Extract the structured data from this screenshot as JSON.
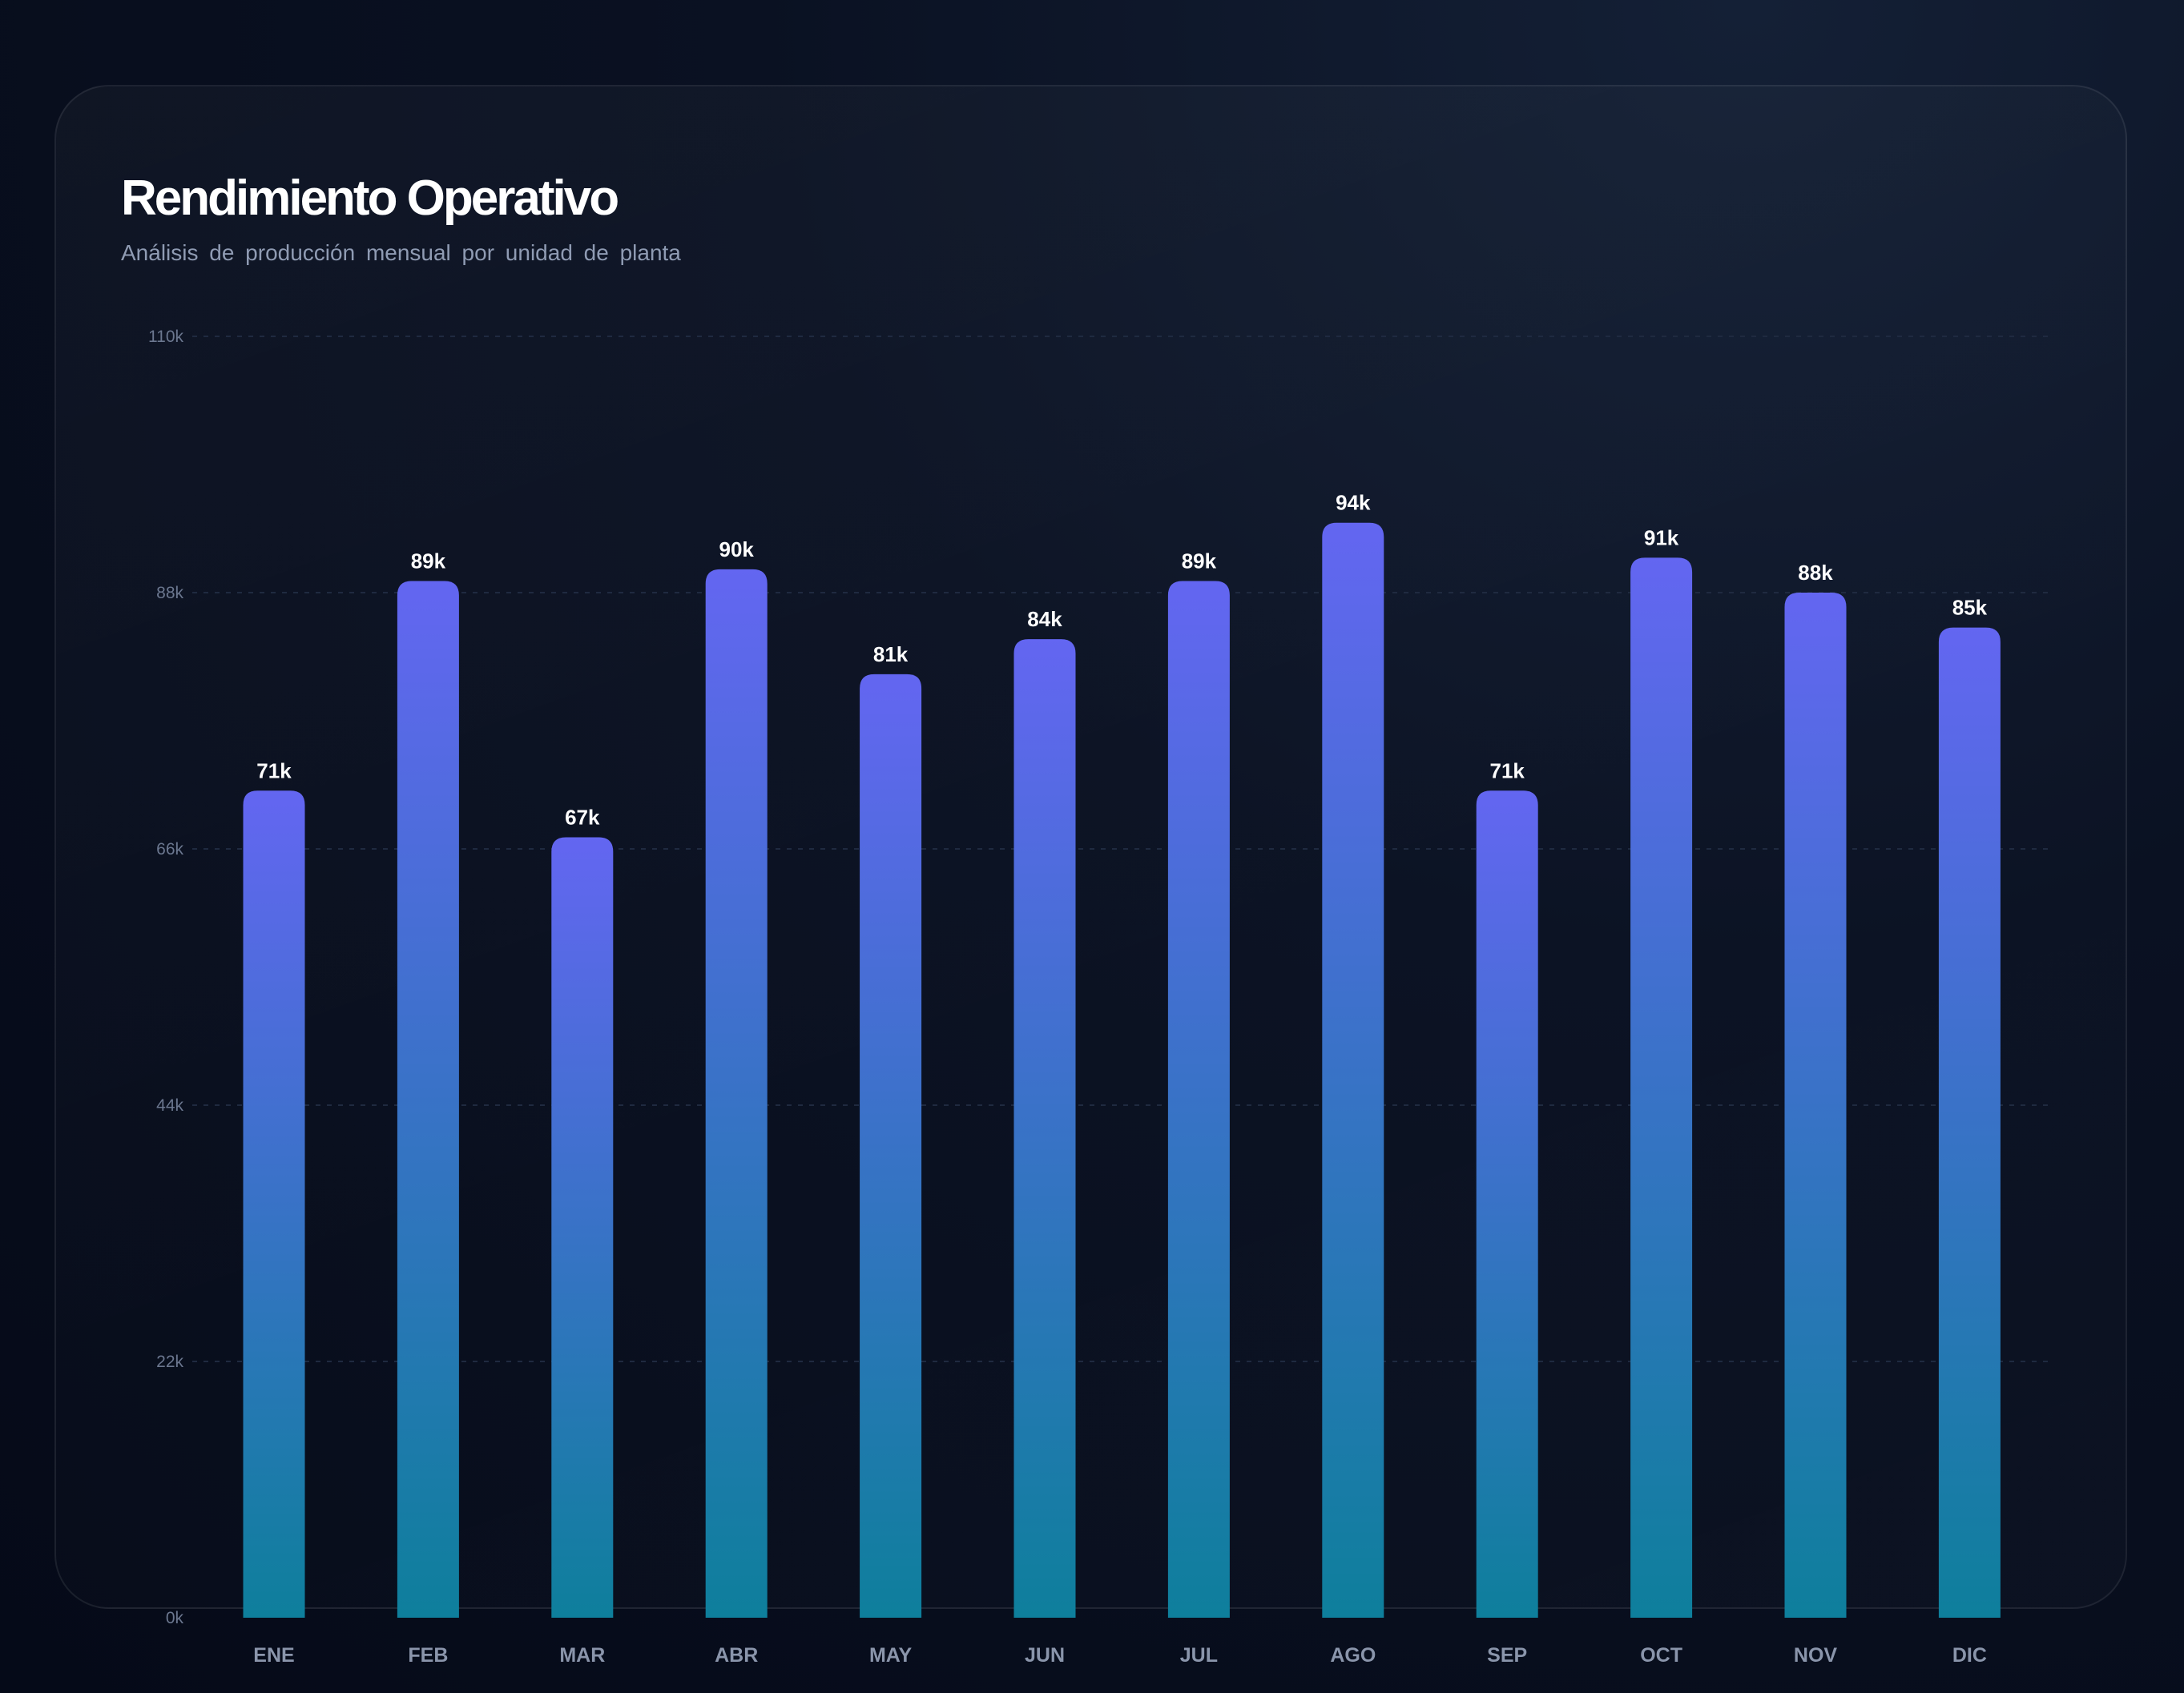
{
  "chart_data": {
    "type": "bar",
    "title": "Rendimiento Operativo",
    "subtitle": "Análisis de producción  mensual por unidad de planta",
    "categories": [
      "ENE",
      "FEB",
      "MAR",
      "ABR",
      "MAY",
      "JUN",
      "JUL",
      "AGO",
      "SEP",
      "OCT",
      "NOV",
      "DIC"
    ],
    "values": [
      71,
      89,
      67,
      90,
      81,
      84,
      89,
      94,
      71,
      91,
      88,
      85
    ],
    "value_labels": [
      "71k",
      "89k",
      "67k",
      "90k",
      "81k",
      "84k",
      "89k",
      "94k",
      "71k",
      "91k",
      "88k",
      "85k"
    ],
    "ylim": [
      0,
      110
    ],
    "yticks": [
      0,
      22,
      44,
      66,
      88,
      110
    ],
    "ytick_labels": [
      "0k",
      "22k",
      "44k",
      "66k",
      "88k",
      "110k"
    ],
    "grid": true,
    "legend": "none",
    "colors": {
      "bar_top": "#6366f1",
      "bar_bottom": "#0e7f9c",
      "grid": "#1f2a40",
      "value_label": "#ffffff",
      "axis_label": "#8a95ab"
    }
  }
}
